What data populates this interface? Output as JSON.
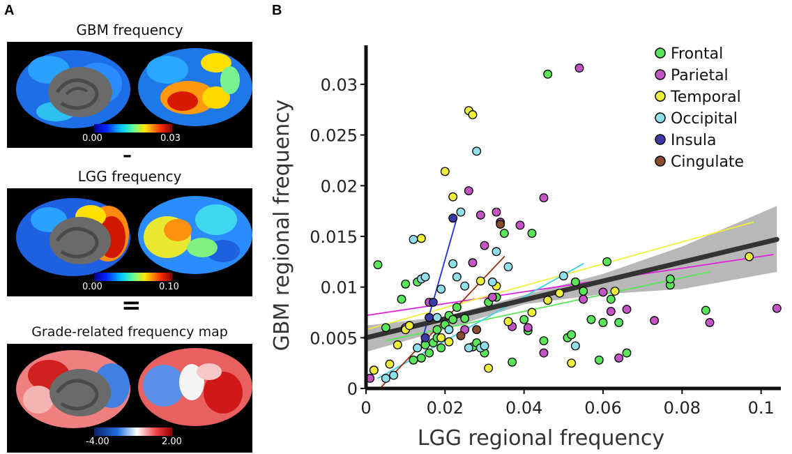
{
  "panel_a": {
    "letter": "A",
    "gbm_title": "GBM frequency",
    "gbm_cb_min": "0.00",
    "gbm_cb_max": "0.03",
    "minus_sign": "–",
    "lgg_title": "LGG frequency",
    "lgg_cb_min": "0.00",
    "lgg_cb_max": "0.10",
    "equals_sign": "=",
    "grade_title": "Grade-related frequency map",
    "grade_cb_min": "-4.00",
    "grade_cb_max": "2.00"
  },
  "panel_b": {
    "letter": "B"
  },
  "chart_data": {
    "type": "scatter",
    "xlabel": "LGG regional frequency",
    "ylabel": "GBM regional frequency",
    "xlim": [
      0,
      0.105
    ],
    "ylim": [
      0,
      0.0335
    ],
    "x_ticks": [
      0,
      0.02,
      0.04,
      0.06,
      0.08,
      0.1
    ],
    "x_tick_labels": [
      "0",
      "0.02",
      "0.04",
      "0.06",
      "0.08",
      "0.1"
    ],
    "y_ticks": [
      0,
      0.005,
      0.01,
      0.015,
      0.02,
      0.025,
      0.03
    ],
    "y_tick_labels": [
      "0",
      "0.005",
      "0.01",
      "0.015",
      "0.02",
      "0.025",
      "0.03"
    ],
    "legend_position": "top-right",
    "series": [
      {
        "name": "Frontal",
        "color": "#59e659",
        "x": [
          0.003,
          0.005,
          0.009,
          0.01,
          0.012,
          0.013,
          0.014,
          0.015,
          0.016,
          0.017,
          0.018,
          0.018,
          0.019,
          0.02,
          0.021,
          0.022,
          0.023,
          0.025,
          0.027,
          0.028,
          0.03,
          0.031,
          0.033,
          0.035,
          0.037,
          0.04,
          0.041,
          0.042,
          0.045,
          0.046,
          0.051,
          0.052,
          0.053,
          0.055,
          0.057,
          0.059,
          0.06,
          0.061,
          0.062,
          0.064,
          0.066,
          0.077,
          0.077,
          0.086
        ],
        "y": [
          0.0122,
          0.006,
          0.0088,
          0.0103,
          0.0028,
          0.0105,
          0.003,
          0.0043,
          0.0035,
          0.0045,
          0.005,
          0.0058,
          0.004,
          0.0063,
          0.0072,
          0.0068,
          0.008,
          0.0069,
          0.0041,
          0.0045,
          0.0035,
          0.0085,
          0.009,
          0.0153,
          0.0026,
          0.0068,
          0.0057,
          0.0153,
          0.0047,
          0.031,
          0.005,
          0.0053,
          0.0105,
          0.0096,
          0.0068,
          0.0028,
          0.0065,
          0.0125,
          0.0088,
          0.0065,
          0.0035,
          0.0102,
          0.0108,
          0.0077
        ]
      },
      {
        "name": "Parietal",
        "color": "#c454c4",
        "x": [
          0.001,
          0.002,
          0.01,
          0.016,
          0.025,
          0.026,
          0.027,
          0.029,
          0.03,
          0.032,
          0.033,
          0.034,
          0.037,
          0.039,
          0.041,
          0.045,
          0.045,
          0.054,
          0.055,
          0.06,
          0.062,
          0.064,
          0.066,
          0.073,
          0.087,
          0.104
        ],
        "y": [
          0.001,
          0.0018,
          0.006,
          0.0085,
          0.0058,
          0.0195,
          0.0124,
          0.0171,
          0.0141,
          0.009,
          0.0174,
          0.0164,
          0.0061,
          0.0161,
          0.006,
          0.0035,
          0.0188,
          0.0316,
          0.0088,
          0.0095,
          0.0076,
          0.003,
          0.0078,
          0.0067,
          0.0065,
          0.0079
        ]
      },
      {
        "name": "Temporal",
        "color": "#f0f03c",
        "x": [
          0.002,
          0.006,
          0.008,
          0.01,
          0.011,
          0.014,
          0.019,
          0.02,
          0.021,
          0.022,
          0.026,
          0.027,
          0.029,
          0.031,
          0.033,
          0.036,
          0.042,
          0.046,
          0.049,
          0.052,
          0.063,
          0.097
        ],
        "y": [
          0.0018,
          0.0024,
          0.0043,
          0.0058,
          0.0062,
          0.0148,
          0.005,
          0.0214,
          0.0046,
          0.0189,
          0.0274,
          0.027,
          0.0106,
          0.002,
          0.0101,
          0.0066,
          0.0075,
          0.0087,
          0.0094,
          0.0025,
          0.0096,
          0.013
        ]
      },
      {
        "name": "Occipital",
        "color": "#8fe0ea",
        "x": [
          0.005,
          0.007,
          0.012,
          0.013,
          0.014,
          0.015,
          0.018,
          0.019,
          0.021,
          0.022,
          0.023,
          0.024,
          0.025,
          0.026,
          0.028,
          0.029,
          0.03,
          0.032,
          0.033,
          0.036,
          0.05,
          0.053
        ],
        "y": [
          0.001,
          0.0013,
          0.0147,
          0.004,
          0.0108,
          0.011,
          0.007,
          0.0098,
          0.0058,
          0.0123,
          0.011,
          0.0174,
          0.0101,
          0.004,
          0.0234,
          0.004,
          0.0042,
          0.0105,
          0.0135,
          0.012,
          0.0111,
          0.0042
        ]
      },
      {
        "name": "Insula",
        "color": "#3a3aa8",
        "x": [
          0.015,
          0.016,
          0.017,
          0.022
        ],
        "y": [
          0.005,
          0.007,
          0.0085,
          0.0168
        ]
      },
      {
        "name": "Cingulate",
        "color": "#8a4a2e",
        "x": [
          0.024,
          0.028,
          0.034
        ],
        "y": [
          0.0052,
          0.0058,
          0.0162
        ]
      }
    ],
    "fit_lines": [
      {
        "series": "Frontal",
        "color": "#59e659",
        "x": [
          0.005,
          0.087
        ],
        "y": [
          0.0047,
          0.0115
        ]
      },
      {
        "series": "Parietal",
        "color": "#e020e0",
        "x": [
          0.0,
          0.103
        ],
        "y": [
          0.0072,
          0.0132
        ]
      },
      {
        "series": "Temporal",
        "color": "#f0f03c",
        "x": [
          0.0,
          0.098
        ],
        "y": [
          0.0058,
          0.0164
        ]
      },
      {
        "series": "Occipital",
        "color": "#3ad0e8",
        "x": [
          0.003,
          0.055
        ],
        "y": [
          0.001,
          0.0123
        ]
      },
      {
        "series": "Insula",
        "color": "#2030d0",
        "x": [
          0.014,
          0.023
        ],
        "y": [
          0.0045,
          0.0168
        ]
      },
      {
        "series": "Cingulate",
        "color": "#9a3010",
        "x": [
          0.004,
          0.035
        ],
        "y": [
          0.0002,
          0.013
        ]
      },
      {
        "series": "All",
        "color": "#333333",
        "x": [
          0.0,
          0.104
        ],
        "y": [
          0.005,
          0.0147
        ]
      }
    ],
    "confidence_band": {
      "color": "#b4b4b4",
      "x": [
        0.0,
        0.02,
        0.04,
        0.06,
        0.08,
        0.104
      ],
      "y_low": [
        0.0036,
        0.0058,
        0.0083,
        0.0093,
        0.0098,
        0.0115
      ],
      "y_high": [
        0.0062,
        0.0071,
        0.0092,
        0.0113,
        0.014,
        0.018
      ]
    }
  }
}
